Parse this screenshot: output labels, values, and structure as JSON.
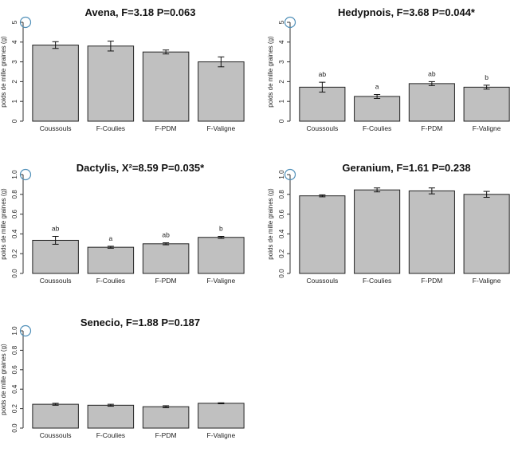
{
  "chart_data": [
    {
      "type": "bar",
      "title": "Avena, F=3.18 P=0.063",
      "xlabel": "",
      "ylabel": "poids de mille graines (g)",
      "ylim": [
        0,
        5
      ],
      "yticks": [
        0,
        1,
        2,
        3,
        4,
        5
      ],
      "categories": [
        "Coussouls",
        "F-Coulies",
        "F-PDM",
        "F-Valigne"
      ],
      "values": [
        3.85,
        3.8,
        3.5,
        3.0
      ],
      "errors": [
        0.17,
        0.25,
        0.1,
        0.25
      ],
      "letters": [],
      "bar_color": "#c0c0c0"
    },
    {
      "type": "bar",
      "title": "Hedypnois, F=3.68 P=0.044*",
      "xlabel": "",
      "ylabel": "poids de mille graines (g)",
      "ylim": [
        0,
        5
      ],
      "yticks": [
        0,
        1,
        2,
        3,
        4,
        5
      ],
      "categories": [
        "Coussouls",
        "F-Coulies",
        "F-PDM",
        "F-Valigne"
      ],
      "values": [
        1.72,
        1.25,
        1.9,
        1.72
      ],
      "errors": [
        0.25,
        0.1,
        0.1,
        0.1
      ],
      "letters": [
        "ab",
        "a",
        "ab",
        "b"
      ],
      "bar_color": "#c0c0c0"
    },
    {
      "type": "bar",
      "title": "Dactylis, X²=8.59 P=0.035*",
      "xlabel": "",
      "ylabel": "poids de mille graines (g)",
      "ylim": [
        0,
        1
      ],
      "yticks": [
        "0.0",
        "0.2",
        "0.4",
        "0.6",
        "0.8",
        "1.0"
      ],
      "categories": [
        "Coussouls",
        "F-Coulies",
        "F-PDM",
        "F-Valigne"
      ],
      "values": [
        0.335,
        0.265,
        0.3,
        0.365
      ],
      "errors": [
        0.04,
        0.01,
        0.01,
        0.01
      ],
      "letters": [
        "ab",
        "a",
        "ab",
        "b"
      ],
      "bar_color": "#c0c0c0"
    },
    {
      "type": "bar",
      "title": "Geranium, F=1.61 P=0.238",
      "xlabel": "",
      "ylabel": "poids de mille graines (g)",
      "ylim": [
        0,
        1
      ],
      "yticks": [
        "0.0",
        "0.2",
        "0.4",
        "0.6",
        "0.8",
        "1.0"
      ],
      "categories": [
        "Coussouls",
        "F-Coulies",
        "F-PDM",
        "F-Valigne"
      ],
      "values": [
        0.785,
        0.845,
        0.835,
        0.8
      ],
      "errors": [
        0.01,
        0.02,
        0.03,
        0.03
      ],
      "letters": [],
      "bar_color": "#c0c0c0"
    },
    {
      "type": "bar",
      "title": "Senecio, F=1.88 P=0.187",
      "xlabel": "",
      "ylabel": "poids de mille graines (g)",
      "ylim": [
        0,
        1
      ],
      "yticks": [
        "0.0",
        "0.2",
        "0.4",
        "0.6",
        "0.8",
        "1.0"
      ],
      "categories": [
        "Coussouls",
        "F-Coulies",
        "F-PDM",
        "F-Valigne"
      ],
      "values": [
        0.245,
        0.235,
        0.22,
        0.255
      ],
      "errors": [
        0.01,
        0.01,
        0.01,
        0.005
      ],
      "letters": [],
      "bar_color": "#c0c0c0"
    }
  ]
}
